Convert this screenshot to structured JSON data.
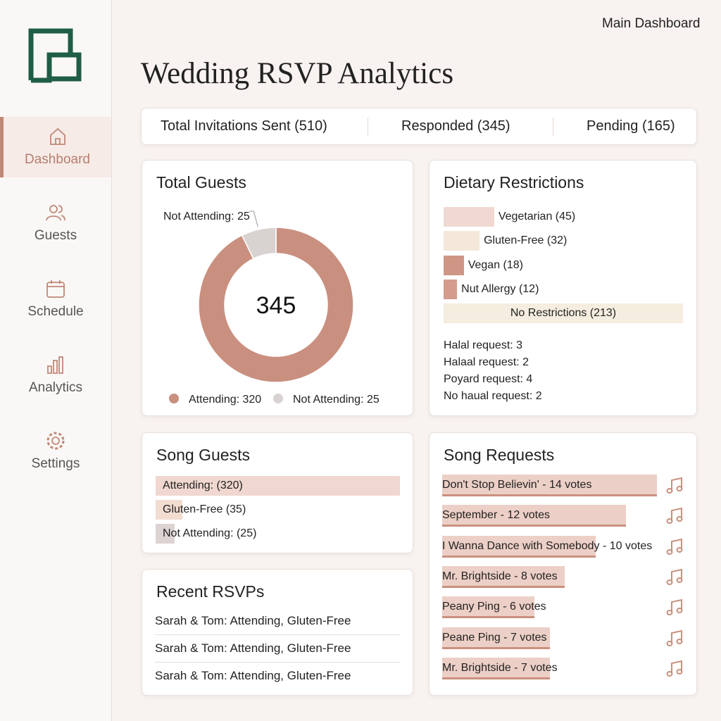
{
  "nav": {
    "items": [
      "Dashboard",
      "Guests",
      "Schedule",
      "Analytics",
      "Settings"
    ],
    "active_index": 0
  },
  "header": {
    "link": "Main Dashboard",
    "title": "Wedding RSVP Analytics"
  },
  "summary": [
    "Total Invitations Sent (510)",
    "Responded (345)",
    "Pending (165)"
  ],
  "total_guests": {
    "title": "Total Guests",
    "total": 345,
    "callout": "Not Attending: 25",
    "slices": [
      {
        "label": "Attending: 320",
        "value": 320,
        "color": "#c98f7f"
      },
      {
        "label": "Not Attending: 25",
        "value": 25,
        "color": "#d8d3d1"
      }
    ]
  },
  "dietary": {
    "title": "Dietary Restrictions",
    "bars": [
      {
        "label": "Vegetarian (45)",
        "value": 45,
        "color": "#f0d9d2"
      },
      {
        "label": "Gluten-Free (32)",
        "value": 32,
        "color": "#f5e8da"
      },
      {
        "label": "Vegan (18)",
        "value": 18,
        "color": "#cf9686"
      },
      {
        "label": "Nut Allergy (12)",
        "value": 12,
        "color": "#d59c8d"
      },
      {
        "label": "No Restrictions (213)",
        "value": 213,
        "color": "#f5eddf"
      }
    ],
    "notes": [
      "Halal request: 3",
      "Halaal request: 2",
      "Poyard request: 4",
      "No haual request: 2"
    ]
  },
  "song_guests": {
    "title": "Song Guests",
    "bars": [
      {
        "label": "Attending: (320)",
        "value": 320,
        "color": "#f0d7cf"
      },
      {
        "label": "Gluten-Free (35)",
        "value": 35,
        "color": "#f3dcd0"
      },
      {
        "label": "Not Attending: (25)",
        "value": 25,
        "color": "#dcd3d2"
      }
    ]
  },
  "recent": {
    "title": "Recent RSVPs",
    "rows": [
      "Sarah & Tom: Attending, Gluten-Free",
      "Sarah & Tom: Attending, Gluten-Free",
      "Sarah & Tom: Attending, Gluten-Free"
    ]
  },
  "song_requests": {
    "title": "Song Requests",
    "color": "#eccfc6",
    "bars": [
      {
        "label": "Don't Stop Believin' - 14 votes",
        "value": 14
      },
      {
        "label": "September - 12 votes",
        "value": 12
      },
      {
        "label": "I Wanna Dance with Somebody - 10 votes",
        "value": 10
      },
      {
        "label": "Mr. Brightside - 8 votes",
        "value": 8
      },
      {
        "label": "Peany Ping - 6 votes",
        "value": 6
      },
      {
        "label": "Peane Ping - 7 votes",
        "value": 7
      },
      {
        "label": "Mr. Brightside - 7 votes",
        "value": 7
      }
    ]
  }
}
